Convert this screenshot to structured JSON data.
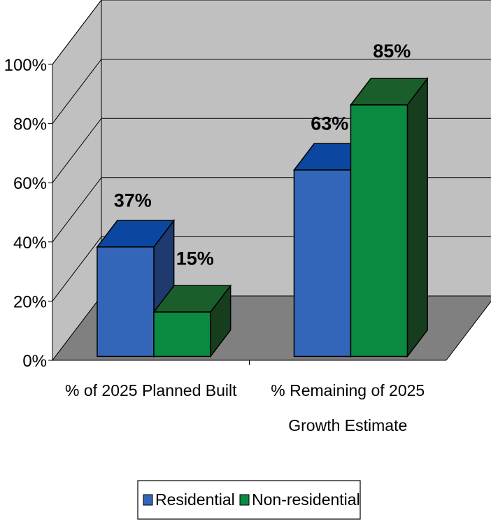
{
  "chart_data": {
    "type": "bar",
    "categories": [
      [
        "% of 2025 Planned Built"
      ],
      [
        "% Remaining of 2025",
        "Growth Estimate"
      ]
    ],
    "series": [
      {
        "name": "Residential",
        "values": [
          37,
          63
        ],
        "labels": [
          "37%",
          "63%"
        ]
      },
      {
        "name": "Non-residential",
        "values": [
          15,
          85
        ],
        "labels": [
          "15%",
          "85%"
        ]
      }
    ],
    "ylim": [
      0,
      100
    ],
    "y_ticks": [
      "0%",
      "20%",
      "40%",
      "60%",
      "80%",
      "100%"
    ],
    "grid": true,
    "three_d": true,
    "legend_position": "bottom"
  },
  "colors": {
    "residential_front": "#3366b8",
    "residential_top": "#0b47a0",
    "residential_side": "#1f3a6e",
    "nonres_front": "#0b8a42",
    "nonres_top": "#1a5e2b",
    "nonres_side": "#173d1f",
    "back_wall": "#c0c0c0",
    "floor": "#808080"
  }
}
